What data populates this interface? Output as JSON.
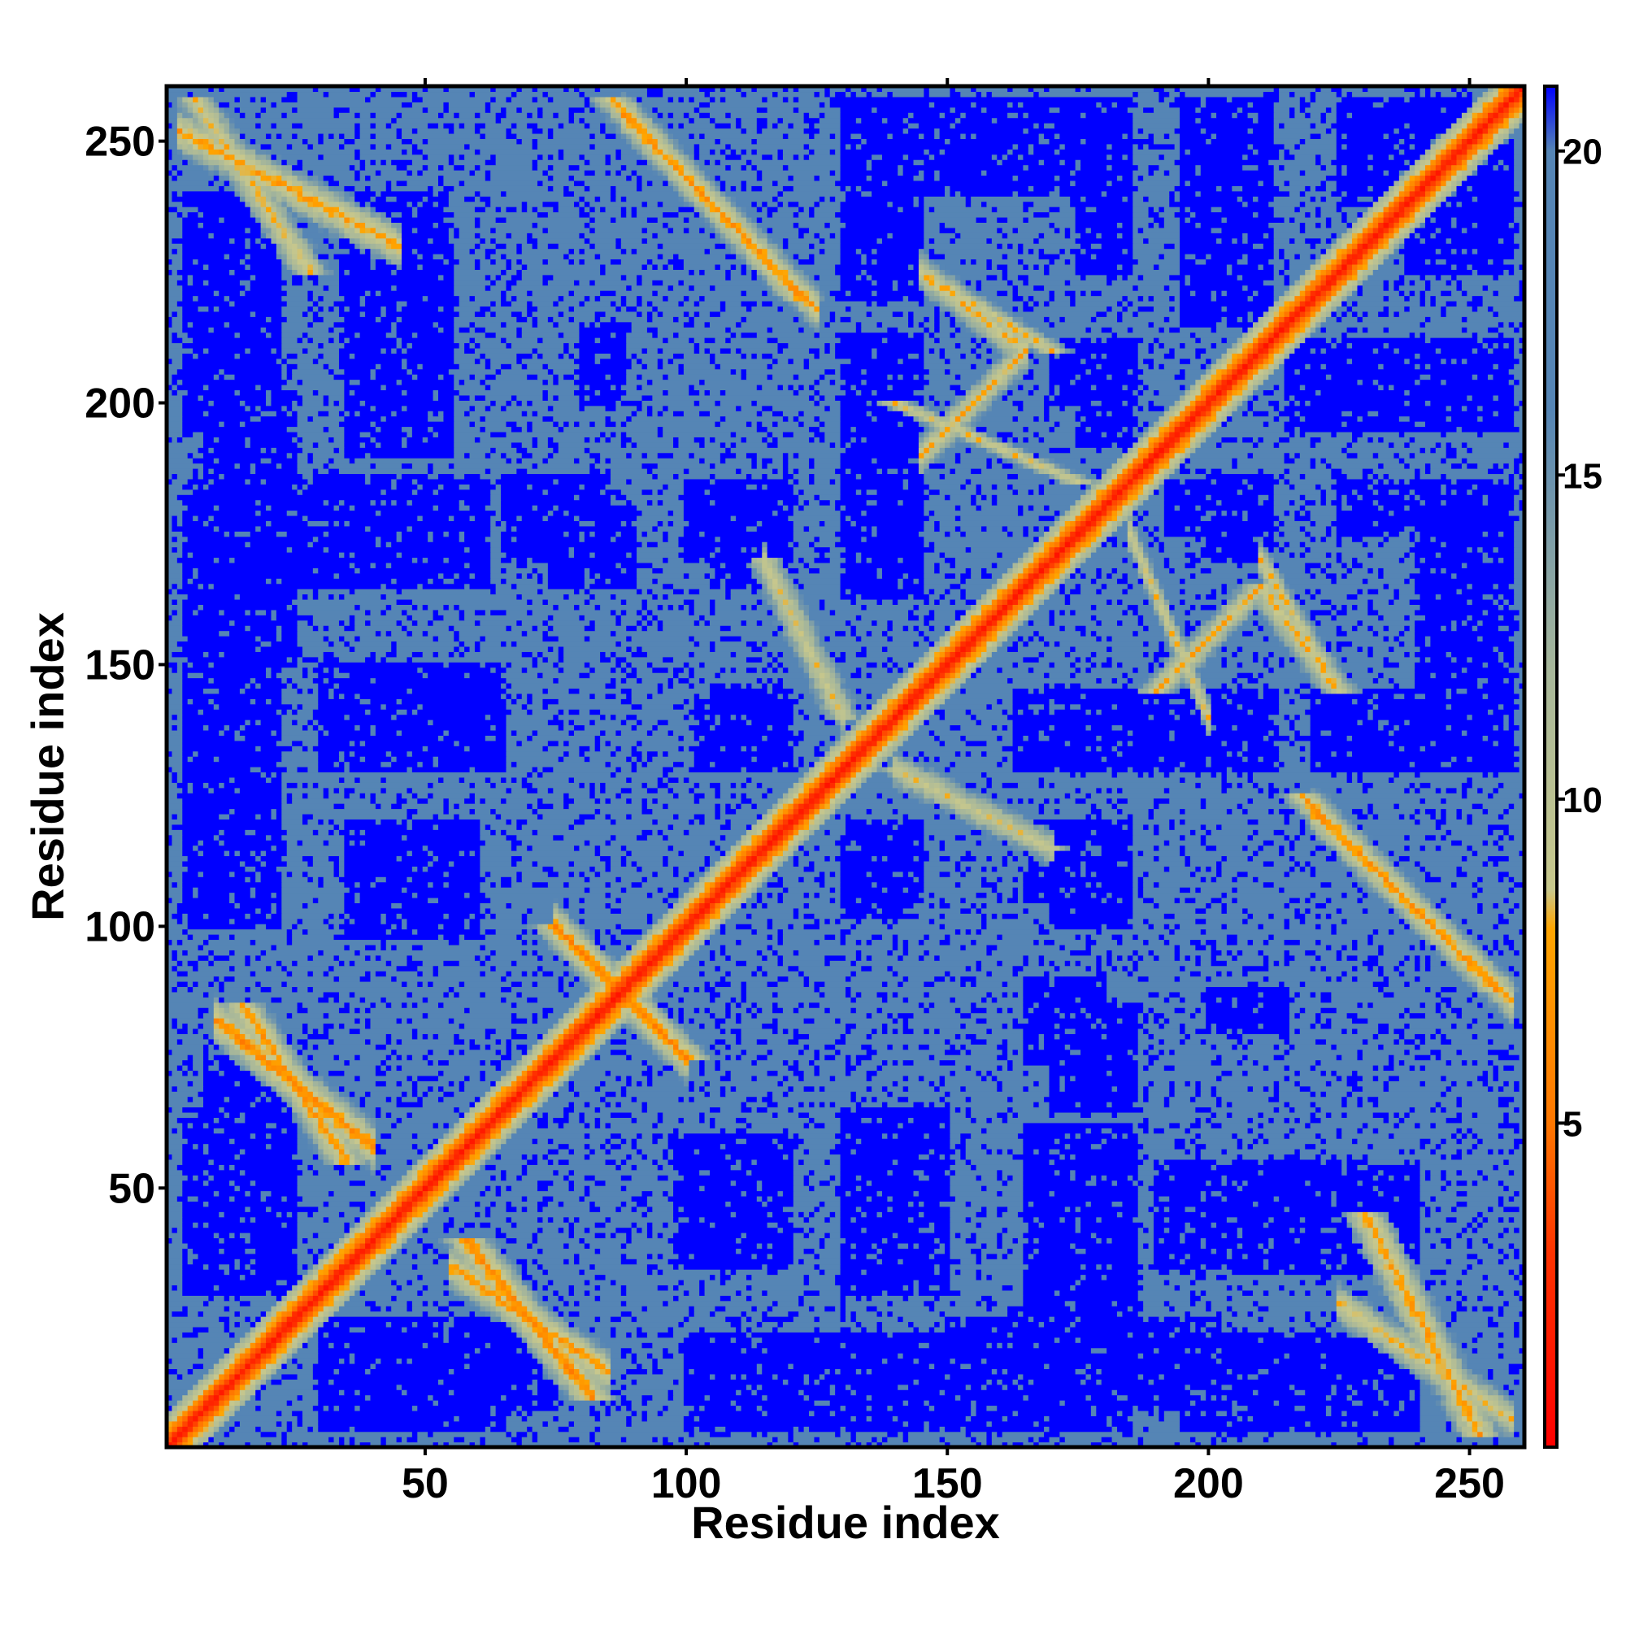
{
  "chart_data": {
    "type": "heatmap",
    "title": "",
    "xlabel": "Residue index",
    "ylabel": "Residue index",
    "n_residues": 260,
    "xlim": [
      1,
      260
    ],
    "ylim": [
      1,
      260
    ],
    "x_ticks": [
      50,
      100,
      150,
      200,
      250
    ],
    "x_tick_labels": [
      "50",
      "100",
      "150",
      "200",
      "250"
    ],
    "y_ticks": [
      50,
      100,
      150,
      200,
      250
    ],
    "y_tick_labels": [
      "50",
      "100",
      "150",
      "200",
      "250"
    ],
    "colorbar": {
      "ticks": [
        5,
        10,
        15,
        20
      ],
      "tick_labels": [
        "5",
        "10",
        "15",
        "20"
      ],
      "range": [
        0,
        21
      ],
      "stops": [
        {
          "value": 0,
          "color": "#ff0000"
        },
        {
          "value": 3,
          "color": "#ff3300"
        },
        {
          "value": 5,
          "color": "#ff7700"
        },
        {
          "value": 8,
          "color": "#ffa500"
        },
        {
          "value": 8.6,
          "color": "#c8c88c"
        },
        {
          "value": 12,
          "color": "#a7b79a"
        },
        {
          "value": 16,
          "color": "#5585b5"
        },
        {
          "value": 20,
          "color": "#5585b5"
        },
        {
          "value": 21,
          "color": "#0000ff"
        }
      ]
    },
    "cutoff_value": 20,
    "diagonal_value": 0,
    "long_range_bands": [
      {
        "i_start": 3,
        "i_end": 45,
        "j_start": 252,
        "j_end": 230,
        "min_value": 6
      },
      {
        "i_start": 88,
        "i_end": 125,
        "j_start": 255,
        "j_end": 218,
        "min_value": 6
      },
      {
        "i_start": 10,
        "i_end": 40,
        "j_start": 82,
        "j_end": 58,
        "min_value": 5
      },
      {
        "i_start": 55,
        "i_end": 85,
        "j_start": 35,
        "j_end": 15,
        "min_value": 6
      },
      {
        "i_start": 220,
        "i_end": 258,
        "j_start": 122,
        "j_end": 86,
        "min_value": 6
      },
      {
        "i_start": 225,
        "i_end": 258,
        "j_start": 28,
        "j_end": 6,
        "min_value": 7
      },
      {
        "i_start": 75,
        "i_end": 100,
        "j_start": 100,
        "j_end": 75,
        "min_value": 5
      },
      {
        "i_start": 145,
        "i_end": 165,
        "j_start": 190,
        "j_end": 210,
        "min_value": 7
      },
      {
        "i_start": 185,
        "i_end": 200,
        "j_start": 175,
        "j_end": 140,
        "min_value": 7
      },
      {
        "i_start": 210,
        "i_end": 222,
        "j_start": 170,
        "j_end": 150,
        "min_value": 7
      },
      {
        "i_start": 140,
        "i_end": 170,
        "j_start": 130,
        "j_end": 115,
        "min_value": 8
      },
      {
        "i_start": 145,
        "i_end": 165,
        "j_start": 225,
        "j_end": 210,
        "min_value": 7
      },
      {
        "i_start": 115,
        "i_end": 130,
        "j_start": 170,
        "j_end": 140,
        "min_value": 8
      }
    ],
    "far_regions": [
      {
        "i": [
          34,
          54
        ],
        "j": [
          205,
          240
        ]
      },
      {
        "i": [
          34,
          60
        ],
        "j": [
          130,
          145
        ]
      },
      {
        "i": [
          4,
          62
        ],
        "j": [
          165,
          185
        ]
      },
      {
        "i": [
          4,
          22
        ],
        "j": [
          195,
          240
        ]
      },
      {
        "i": [
          4,
          22
        ],
        "j": [
          100,
          165
        ]
      },
      {
        "i": [
          4,
          22
        ],
        "j": [
          40,
          65
        ]
      },
      {
        "i": [
          30,
          62
        ],
        "j": [
          4,
          25
        ]
      },
      {
        "i": [
          74,
          90
        ],
        "j": [
          165,
          180
        ]
      },
      {
        "i": [
          105,
          120
        ],
        "j": [
          165,
          185
        ]
      },
      {
        "i": [
          102,
          118
        ],
        "j": [
          130,
          143
        ]
      },
      {
        "i": [
          130,
          145
        ],
        "j": [
          165,
          210
        ]
      },
      {
        "i": [
          130,
          145
        ],
        "j": [
          225,
          245
        ]
      },
      {
        "i": [
          130,
          150
        ],
        "j": [
          30,
          65
        ]
      },
      {
        "i": [
          130,
          145
        ],
        "j": [
          105,
          120
        ]
      },
      {
        "i": [
          170,
          186
        ],
        "j": [
          200,
          212
        ]
      },
      {
        "i": [
          163,
          213
        ],
        "j": [
          130,
          145
        ]
      },
      {
        "i": [
          220,
          233
        ],
        "j": [
          130,
          145
        ]
      },
      {
        "i": [
          192,
          212
        ],
        "j": [
          175,
          185
        ]
      },
      {
        "i": [
          170,
          185
        ],
        "j": [
          100,
          120
        ]
      },
      {
        "i": [
          170,
          186
        ],
        "j": [
          65,
          85
        ]
      },
      {
        "i": [
          170,
          186
        ],
        "j": [
          25,
          60
        ]
      },
      {
        "i": [
          190,
          230
        ],
        "j": [
          35,
          55
        ]
      },
      {
        "i": [
          98,
          120
        ],
        "j": [
          35,
          60
        ]
      },
      {
        "i": [
          200,
          215
        ],
        "j": [
          80,
          88
        ]
      },
      {
        "i": [
          238,
          258
        ],
        "j": [
          225,
          250
        ]
      },
      {
        "i": [
          240,
          258
        ],
        "j": [
          130,
          180
        ]
      },
      {
        "i": [
          225,
          258
        ],
        "j": [
          175,
          185
        ]
      },
      {
        "i": [
          215,
          258
        ],
        "j": [
          195,
          212
        ]
      },
      {
        "i": [
          182,
          202
        ],
        "j": [
          8,
          25
        ]
      },
      {
        "i": [
          150,
          170
        ],
        "j": [
          8,
          25
        ]
      },
      {
        "i": [
          110,
          150
        ],
        "j": [
          8,
          20
        ]
      },
      {
        "i": [
          60,
          75
        ],
        "j": [
          8,
          25
        ]
      }
    ]
  }
}
